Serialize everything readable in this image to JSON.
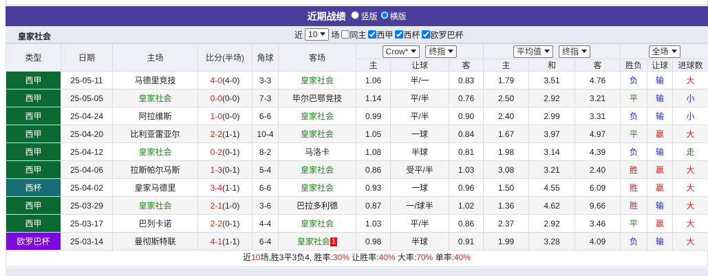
{
  "header": {
    "title": "近期战绩",
    "layout_options": [
      {
        "label": "竖版",
        "selected": false
      },
      {
        "label": "横版",
        "selected": true
      }
    ]
  },
  "team": "皇家社会",
  "filters": {
    "prefix": "近",
    "count": "10",
    "suffix": "场",
    "checkboxes": [
      {
        "label": "同主",
        "checked": false
      },
      {
        "label": "西甲",
        "checked": true
      },
      {
        "label": "西杯",
        "checked": true
      },
      {
        "label": "欧罗巴杯",
        "checked": true
      }
    ]
  },
  "table": {
    "columns": [
      "类型",
      "日期",
      "主场",
      "比分(半场)",
      "角球",
      "客场"
    ],
    "odds_selects": [
      "Crow*",
      "终指",
      "平均值",
      "终指",
      "全场"
    ],
    "sub_columns": [
      "主",
      "让球",
      "客",
      "主",
      "和",
      "客",
      "胜负",
      "让球",
      "进球数"
    ],
    "type_colors": {
      "西甲": "#0b6a32",
      "西杯": "#166e72",
      "欧罗巴杯": "#7a0bd8"
    },
    "outcome_colors": {
      "负": "#1f2fc8",
      "平": "#1e8a1e",
      "胜": "#e02020",
      "输": "#1f2fc8",
      "赢": "#e02020",
      "大": "#e02020",
      "小": "#1f2fc8",
      "走": "#1e8a1e"
    },
    "rows": [
      {
        "type": "西甲",
        "date": "25-05-11",
        "home": "马德里竞技",
        "score": "4-0",
        "half": "(4-0)",
        "corners": "3-3",
        "away": "皇家社会",
        "crow": [
          "1.06",
          "半/一",
          "0.83"
        ],
        "avg": [
          "1.79",
          "3.51",
          "4.76"
        ],
        "result": "负",
        "handicap": "输",
        "goals": "大"
      },
      {
        "type": "西甲",
        "date": "25-05-05",
        "home": "皇家社会",
        "score": "0-0",
        "half": "(0-0)",
        "corners": "7-3",
        "away": "毕尔巴鄂竞技",
        "crow": [
          "1.14",
          "平/半",
          "0.76"
        ],
        "avg": [
          "2.50",
          "2.92",
          "3.21"
        ],
        "result": "平",
        "handicap": "输",
        "goals": "小"
      },
      {
        "type": "西甲",
        "date": "25-04-24",
        "home": "阿拉维斯",
        "score": "1-0",
        "half": "(0-0)",
        "corners": "6-6",
        "away": "皇家社会",
        "crow": [
          "0.99",
          "平/半",
          "0.90"
        ],
        "avg": [
          "2.40",
          "2.99",
          "3.31"
        ],
        "result": "负",
        "handicap": "输",
        "goals": "小"
      },
      {
        "type": "西甲",
        "date": "25-04-20",
        "home": "比利亚雷亚尔",
        "score": "2-2",
        "half": "(1-1)",
        "corners": "10-4",
        "away": "皇家社会",
        "crow": [
          "1.05",
          "一球",
          "0.84"
        ],
        "avg": [
          "1.67",
          "3.97",
          "4.97"
        ],
        "result": "平",
        "handicap": "赢",
        "goals": "大"
      },
      {
        "type": "西甲",
        "date": "25-04-12",
        "home": "皇家社会",
        "score": "0-2",
        "half": "(0-1)",
        "corners": "8-2",
        "away": "马洛卡",
        "crow": [
          "1.08",
          "半球",
          "0.81"
        ],
        "avg": [
          "1.98",
          "3.14",
          "4.39"
        ],
        "result": "负",
        "handicap": "输",
        "goals": "走"
      },
      {
        "type": "西甲",
        "date": "25-04-06",
        "home": "拉斯帕尔马斯",
        "score": "1-3",
        "half": "(0-1)",
        "corners": "5-4",
        "away": "皇家社会",
        "crow": [
          "0.86",
          "受平/半",
          "1.03"
        ],
        "avg": [
          "3.08",
          "3.21",
          "2.40"
        ],
        "result": "胜",
        "handicap": "赢",
        "goals": "大"
      },
      {
        "type": "西杯",
        "date": "25-04-02",
        "home": "皇家马德里",
        "score": "3-4",
        "half": "(1-1)",
        "corners": "6-6",
        "away": "皇家社会",
        "crow": [
          "0.93",
          "一球",
          "0.96"
        ],
        "avg": [
          "1.50",
          "4.55",
          "6.09"
        ],
        "result": "胜",
        "handicap": "赢",
        "goals": "大"
      },
      {
        "type": "西甲",
        "date": "25-03-29",
        "home": "皇家社会",
        "score": "2-1",
        "half": "(1-0)",
        "corners": "3-6",
        "away": "巴拉多利德",
        "crow": [
          "0.87",
          "一/球半",
          "1.02"
        ],
        "avg": [
          "1.36",
          "4.62",
          "9.66"
        ],
        "result": "胜",
        "handicap": "输",
        "goals": "大"
      },
      {
        "type": "西甲",
        "date": "25-03-17",
        "home": "巴列卡诺",
        "score": "2-2",
        "half": "(0-1)",
        "corners": "4-4",
        "away": "皇家社会",
        "crow": [
          "1.03",
          "平/半",
          "0.86"
        ],
        "avg": [
          "2.37",
          "2.92",
          "3.46"
        ],
        "result": "平",
        "handicap": "赢",
        "goals": "大"
      },
      {
        "type": "欧罗巴杯",
        "date": "25-03-14",
        "home": "曼彻斯特联",
        "score": "4-1",
        "half": "(1-1)",
        "corners": "6-4",
        "away": "皇家社会",
        "red_card": "1",
        "crow": [
          "0.98",
          "半球",
          "0.91"
        ],
        "avg": [
          "1.99",
          "3.28",
          "4.09"
        ],
        "result": "负",
        "handicap": "输",
        "goals": "大"
      }
    ]
  },
  "summary": [
    "近",
    "10",
    "场,胜3平3负4, 胜率:",
    "30%",
    " 让胜率:",
    "40%",
    " 大率:",
    "70%",
    " 单率:",
    "40%"
  ]
}
